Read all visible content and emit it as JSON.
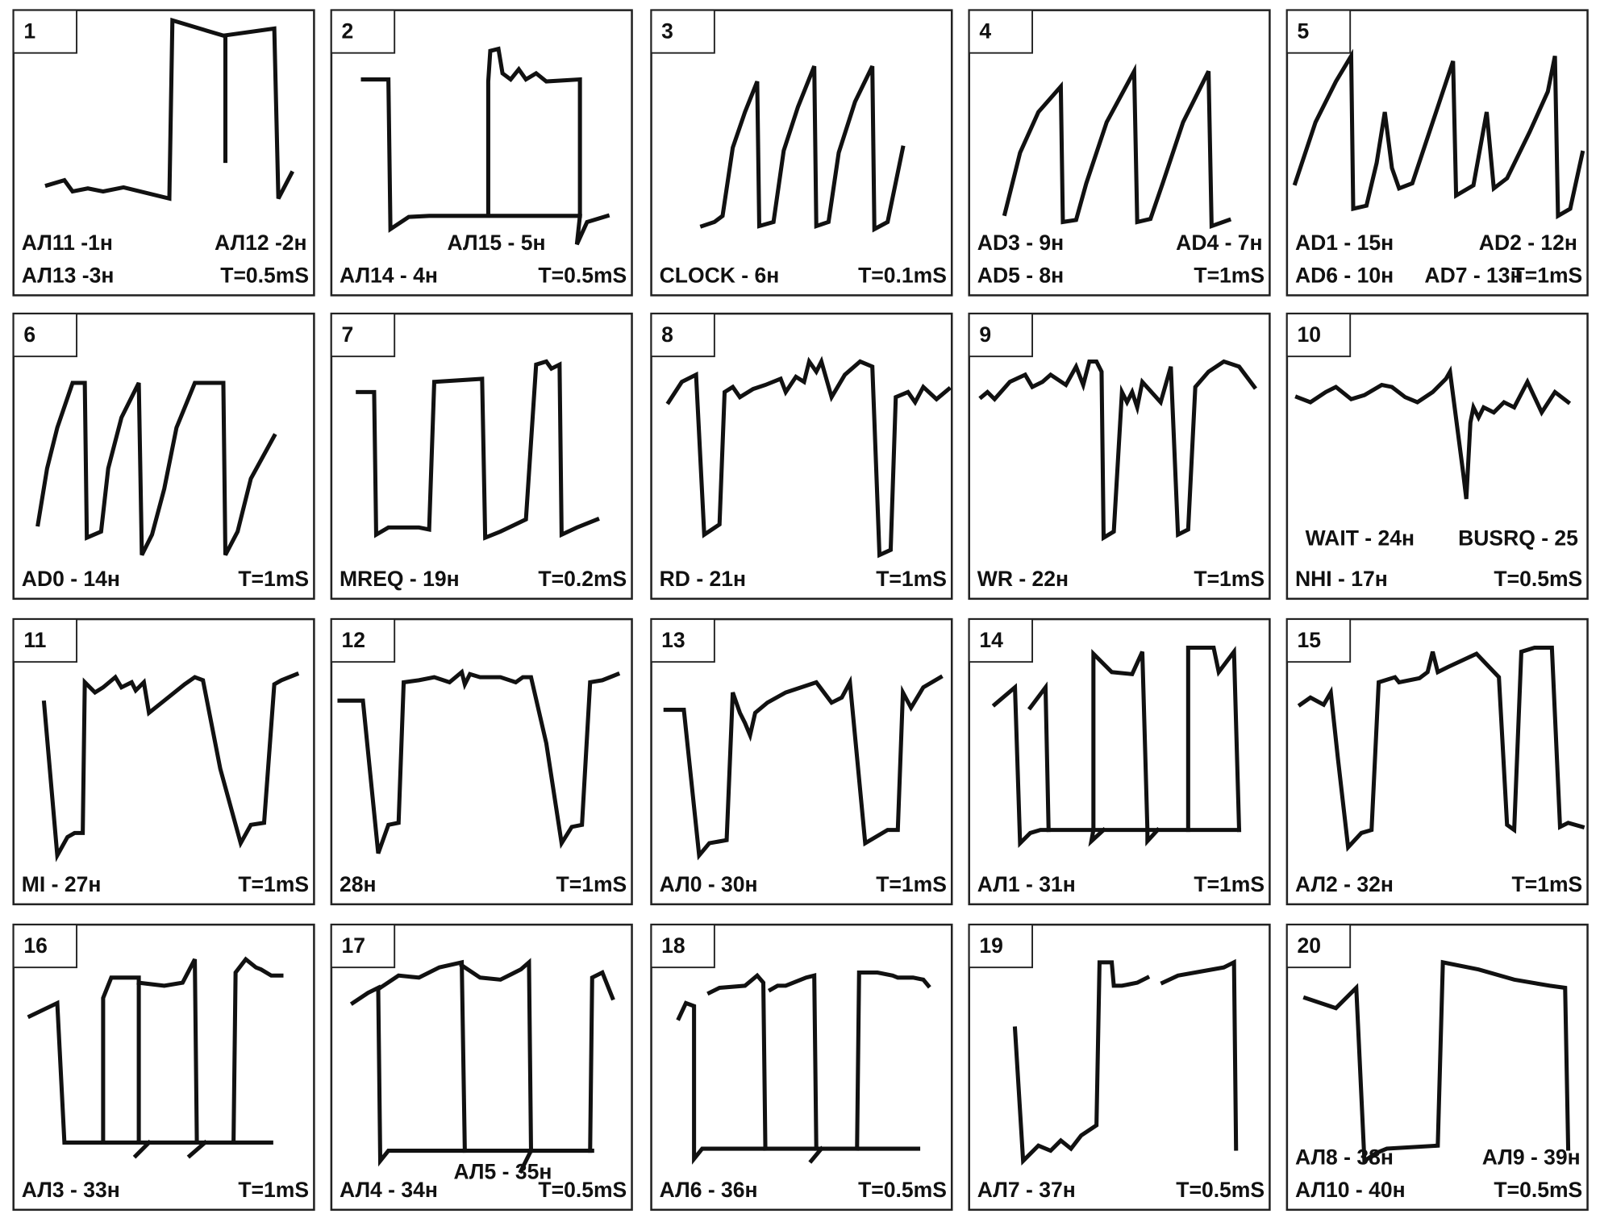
{
  "panels": [
    {
      "number": 1,
      "labels": [
        "АЛ11 -1н",
        "АЛ12 -2н",
        "АЛ13 -3н",
        "T=0.5mS"
      ]
    },
    {
      "number": 2,
      "labels": [
        "АЛ15 - 5н",
        "АЛ14 - 4н",
        "T=0.5mS"
      ]
    },
    {
      "number": 3,
      "labels": [
        "CLOCK - 6н",
        "T=0.1mS"
      ]
    },
    {
      "number": 4,
      "labels": [
        "AD3 - 9н",
        "AD4 - 7н",
        "AD5 - 8н",
        "T=1mS"
      ]
    },
    {
      "number": 5,
      "labels": [
        "AD1 - 15н",
        "AD2 - 12н",
        "AD6 - 10н",
        "AD7 - 13н",
        "T=1mS"
      ]
    },
    {
      "number": 6,
      "labels": [
        "AD0 - 14н",
        "T=1mS"
      ]
    },
    {
      "number": 7,
      "labels": [
        "MREQ - 19н",
        "T=0.2mS"
      ]
    },
    {
      "number": 8,
      "labels": [
        "RD - 21н",
        "T=1mS"
      ]
    },
    {
      "number": 9,
      "labels": [
        "WR - 22н",
        "T=1mS"
      ]
    },
    {
      "number": 10,
      "labels": [
        "WAIT - 24н",
        "BUSRQ - 25",
        "NHI - 17н",
        "T=0.5mS"
      ]
    },
    {
      "number": 11,
      "labels": [
        "MI - 27н",
        "T=1mS"
      ]
    },
    {
      "number": 12,
      "labels": [
        "28н",
        "T=1mS"
      ]
    },
    {
      "number": 13,
      "labels": [
        "АЛ0 - 30н",
        "T=1mS"
      ]
    },
    {
      "number": 14,
      "labels": [
        "АЛ1 - 31н",
        "T=1mS"
      ]
    },
    {
      "number": 15,
      "labels": [
        "АЛ2 - 32н",
        "T=1mS"
      ]
    },
    {
      "number": 16,
      "labels": [
        "АЛ3 - 33н",
        "T=1mS"
      ]
    },
    {
      "number": 17,
      "labels": [
        "АЛ4 - 34н",
        "АЛ5 - 35н",
        "T=0.5mS"
      ]
    },
    {
      "number": 18,
      "labels": [
        "АЛ6 - 36н",
        "T=0.5mS"
      ]
    },
    {
      "number": 19,
      "labels": [
        "АЛ7 - 37н",
        "T=0.5mS"
      ]
    },
    {
      "number": 20,
      "labels": [
        "АЛ8 - 38н",
        "АЛ9 - 39н",
        "АЛ10 - 40н",
        "T=0.5mS"
      ]
    }
  ]
}
